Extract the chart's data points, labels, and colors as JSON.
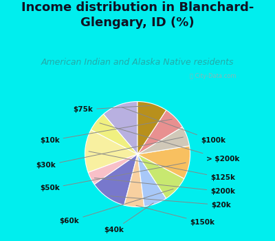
{
  "title": "Income distribution in Blanchard-\nGlengary, ID (%)",
  "subtitle": "American Indian and Alaska Native residents",
  "watermark": "ⓘ City-Data.com",
  "background_outer": "#00EEEE",
  "background_inner": "#d8f0e8",
  "labels": [
    "$100k",
    "> $200k",
    "$125k",
    "$200k",
    "$20k",
    "$150k",
    "$40k",
    "$60k",
    "$50k",
    "$30k",
    "$10k",
    "$75k"
  ],
  "values": [
    11,
    6,
    13,
    4,
    11,
    6,
    7,
    8,
    10,
    6,
    7,
    9
  ],
  "colors": [
    "#b8b0e0",
    "#f0f080",
    "#f8f0a0",
    "#f8c0c8",
    "#7878cc",
    "#f8d0a0",
    "#a8c8f8",
    "#c8e870",
    "#f8c060",
    "#d0c8b8",
    "#e89090",
    "#b8901c"
  ],
  "startangle": 90,
  "title_fontsize": 13,
  "subtitle_fontsize": 9,
  "label_fontsize": 7.5
}
